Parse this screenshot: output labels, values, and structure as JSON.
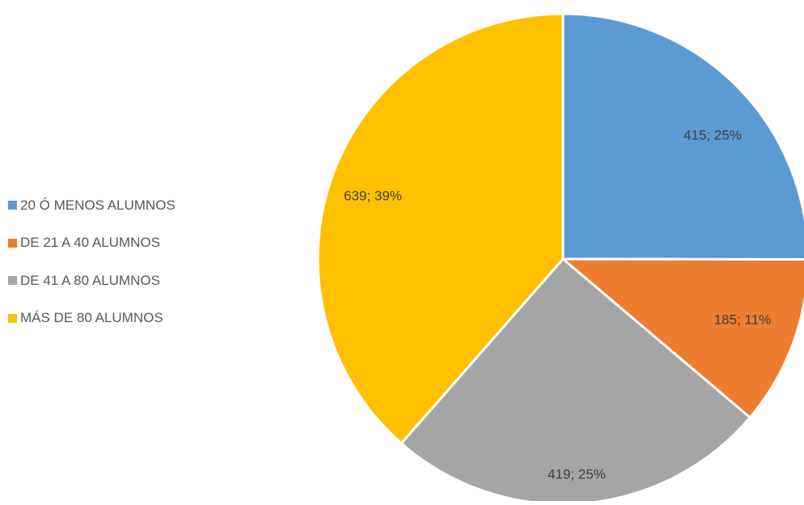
{
  "chart_data": {
    "type": "pie",
    "title": "",
    "legend_position": "left",
    "categories": [
      "20 Ó MENOS ALUMNOS",
      "DE 21 A 40 ALUMNOS",
      "DE 41 A 80 ALUMNOS",
      "MÁS DE 80 ALUMNOS"
    ],
    "values": [
      415,
      185,
      419,
      639
    ],
    "data_labels": [
      "415; 25%",
      "185; 11%",
      "419; 25%",
      "639; 39%"
    ],
    "colors": [
      "#5B9BD5",
      "#ED7D31",
      "#A5A5A5",
      "#FFC000"
    ],
    "label_color": "#404040",
    "slice_border_color": "#FFFFFF"
  }
}
